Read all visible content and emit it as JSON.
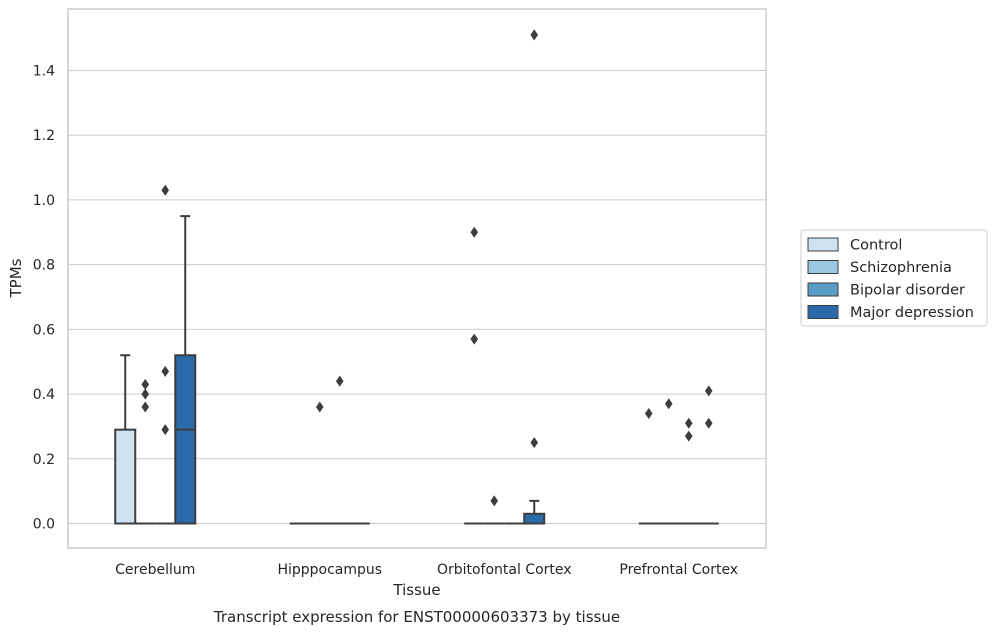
{
  "chart_data": {
    "type": "box",
    "caption": "Transcript expression for ENST00000603373 by tissue",
    "xlabel": "Tissue",
    "ylabel": "TPMs",
    "ylim": [
      -0.07,
      1.58
    ],
    "yticks": [
      0.0,
      0.2,
      0.4,
      0.6,
      0.8,
      1.0,
      1.2,
      1.4
    ],
    "ytick_labels": [
      "0.0",
      "0.2",
      "0.4",
      "0.6",
      "0.8",
      "1.0",
      "1.2",
      "1.4"
    ],
    "grid": true,
    "legend_position": "right",
    "categories": [
      "Cerebellum",
      "Hipppocampus",
      "Orbitofontal Cortex",
      "Prefrontal Cortex"
    ],
    "series": [
      {
        "name": "Control",
        "color": "#d0e1f2",
        "boxes": [
          {
            "q1": 0.0,
            "median": 0.0,
            "q3": 0.29,
            "whisker_low": 0.0,
            "whisker_high": 0.52,
            "outliers": []
          },
          {
            "q1": 0.0,
            "median": 0.0,
            "q3": 0.0,
            "whisker_low": 0.0,
            "whisker_high": 0.0,
            "outliers": []
          },
          {
            "q1": 0.0,
            "median": 0.0,
            "q3": 0.0,
            "whisker_low": 0.0,
            "whisker_high": 0.0,
            "outliers": [
              0.9,
              0.57
            ]
          },
          {
            "q1": 0.0,
            "median": 0.0,
            "q3": 0.0,
            "whisker_low": 0.0,
            "whisker_high": 0.0,
            "outliers": [
              0.34
            ]
          }
        ]
      },
      {
        "name": "Schizophrenia",
        "color": "#9ac8e0",
        "boxes": [
          {
            "q1": 0.0,
            "median": 0.0,
            "q3": 0.0,
            "whisker_low": 0.0,
            "whisker_high": 0.0,
            "outliers": [
              0.43,
              0.4,
              0.36
            ]
          },
          {
            "q1": 0.0,
            "median": 0.0,
            "q3": 0.0,
            "whisker_low": 0.0,
            "whisker_high": 0.0,
            "outliers": [
              0.36
            ]
          },
          {
            "q1": 0.0,
            "median": 0.0,
            "q3": 0.0,
            "whisker_low": 0.0,
            "whisker_high": 0.0,
            "outliers": [
              0.07
            ]
          },
          {
            "q1": 0.0,
            "median": 0.0,
            "q3": 0.0,
            "whisker_low": 0.0,
            "whisker_high": 0.0,
            "outliers": [
              0.37
            ]
          }
        ]
      },
      {
        "name": "Bipolar disorder",
        "color": "#5a9bc8",
        "boxes": [
          {
            "q1": 0.0,
            "median": 0.0,
            "q3": 0.0,
            "whisker_low": 0.0,
            "whisker_high": 0.0,
            "outliers": [
              1.03,
              0.47,
              0.29
            ]
          },
          {
            "q1": 0.0,
            "median": 0.0,
            "q3": 0.0,
            "whisker_low": 0.0,
            "whisker_high": 0.0,
            "outliers": [
              0.44
            ]
          },
          {
            "q1": 0.0,
            "median": 0.0,
            "q3": 0.0,
            "whisker_low": 0.0,
            "whisker_high": 0.0,
            "outliers": []
          },
          {
            "q1": 0.0,
            "median": 0.0,
            "q3": 0.0,
            "whisker_low": 0.0,
            "whisker_high": 0.0,
            "outliers": [
              0.31,
              0.27
            ]
          }
        ]
      },
      {
        "name": "Major depression",
        "color": "#2a6aa8",
        "boxes": [
          {
            "q1": 0.0,
            "median": 0.29,
            "q3": 0.52,
            "whisker_low": 0.0,
            "whisker_high": 0.95,
            "outliers": []
          },
          {
            "q1": 0.0,
            "median": 0.0,
            "q3": 0.0,
            "whisker_low": 0.0,
            "whisker_high": 0.0,
            "outliers": []
          },
          {
            "q1": 0.0,
            "median": 0.0,
            "q3": 0.03,
            "whisker_low": 0.0,
            "whisker_high": 0.07,
            "outliers": [
              1.51,
              0.25
            ]
          },
          {
            "q1": 0.0,
            "median": 0.0,
            "q3": 0.0,
            "whisker_low": 0.0,
            "whisker_high": 0.0,
            "outliers": [
              0.41,
              0.31
            ]
          }
        ]
      }
    ]
  },
  "colors": {
    "grid": "#cccccc",
    "frame": "#cccccc",
    "line": "#3d3d3d",
    "outlier": "#3d3d3d"
  }
}
